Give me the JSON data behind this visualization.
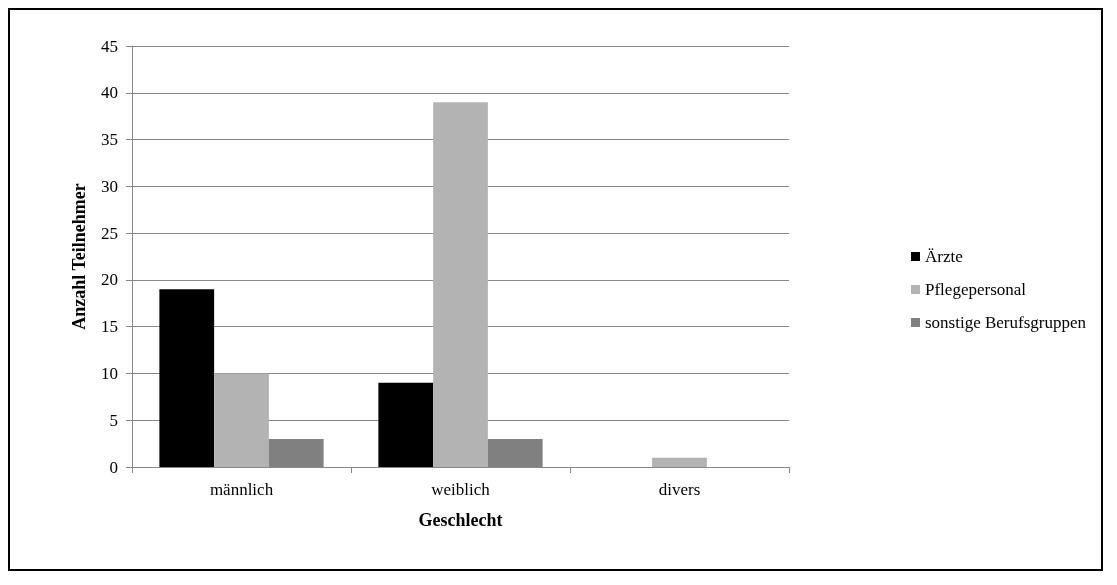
{
  "chart_data": {
    "type": "bar",
    "xlabel": "Geschlecht",
    "ylabel": "Anzahl Teilnehmer",
    "categories": [
      "männlich",
      "weiblich",
      "divers"
    ],
    "series": [
      {
        "name": "Ärzte",
        "color": "#000000",
        "values": [
          19,
          9,
          0
        ]
      },
      {
        "name": "Pflegepersonal",
        "color": "#b3b3b3",
        "values": [
          10,
          39,
          1
        ]
      },
      {
        "name": "sonstige Berufsgruppen",
        "color": "#808080",
        "values": [
          3,
          3,
          0
        ]
      }
    ],
    "ylim": [
      0,
      45
    ],
    "yticks": [
      0,
      5,
      10,
      15,
      20,
      25,
      30,
      35,
      40,
      45
    ],
    "grid": "y",
    "legend": "right"
  }
}
